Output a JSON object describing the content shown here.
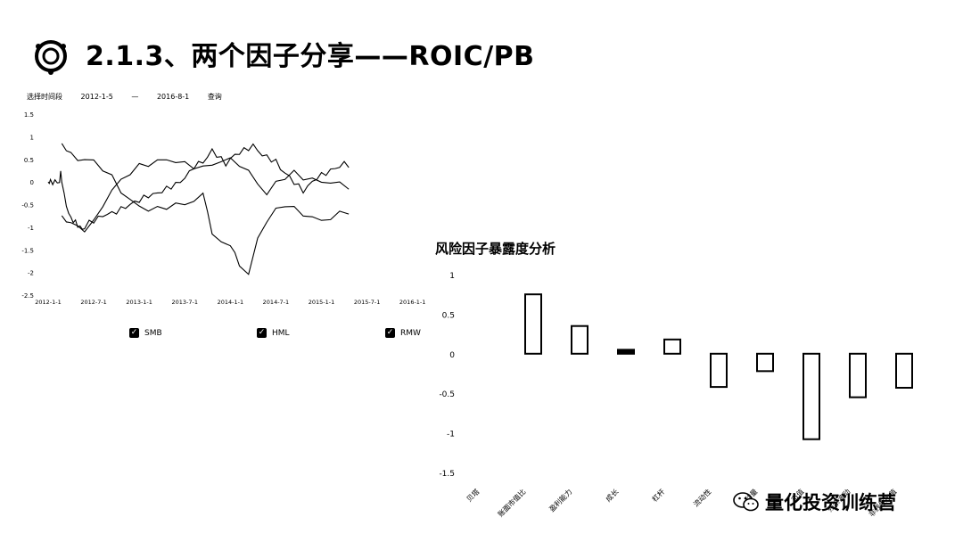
{
  "slide": {
    "title": "2.1.3、两个因子分享——ROIC/PB"
  },
  "date_range": {
    "label": "选择时间段",
    "start": "2012-1-5",
    "sep": "—",
    "end": "2016-8-1",
    "query": "查询"
  },
  "watermark": {
    "text": "量化投资训练营",
    "icon": "wechat-icon"
  },
  "chart_data": [
    {
      "type": "line",
      "x_ticks": [
        "2012-1-1",
        "2012-7-1",
        "2013-1-1",
        "2013-7-1",
        "2014-1-1",
        "2014-7-1",
        "2015-1-1",
        "2015-7-1",
        "2016-1-1"
      ],
      "y_ticks": [
        "1.5",
        "1",
        "0.5",
        "0",
        "-0.5",
        "-1",
        "-1.5",
        "-2",
        "-2.5"
      ],
      "ylim": [
        -2.5,
        1.5
      ],
      "series": [
        {
          "name": "SMB",
          "x": [
            0,
            0.05,
            0.1,
            0.2,
            0.3,
            0.4,
            0.5,
            0.55,
            0.6,
            0.7,
            0.8,
            0.9,
            1.0,
            1.1,
            1.2,
            1.3,
            1.4,
            1.5,
            1.6,
            1.8,
            2.0,
            2.2,
            2.4,
            2.6,
            2.8,
            3.0,
            3.2,
            3.4,
            3.6,
            3.8,
            4.0,
            4.2,
            4.4,
            4.6,
            4.8,
            5.0,
            5.2,
            5.4,
            5.6,
            5.8,
            6.0,
            6.2,
            6.4,
            6.6,
            6.8,
            7.0,
            7.2,
            7.4,
            7.6,
            7.8,
            8.0,
            8.2,
            8.4,
            8.6,
            8.8,
            9.0,
            9.2,
            9.4,
            9.6,
            9.8,
            10.0,
            10.2,
            10.4,
            10.6,
            10.8,
            11.0,
            11.2,
            11.4,
            11.6,
            11.8,
            12.0,
            12.2,
            12.4,
            12.6,
            12.8,
            13.0,
            13.2
          ],
          "values": [
            0,
            0,
            0,
            0,
            0,
            0,
            0,
            0.2,
            0.05,
            -0.3,
            -0.5,
            -0.7,
            -0.8,
            -0.85,
            -0.9,
            -0.95,
            -1.0,
            -1.05,
            -1.0,
            -0.9,
            -0.85,
            -0.8,
            -0.75,
            -0.7,
            -0.7,
            -0.65,
            -0.6,
            -0.55,
            -0.5,
            -0.45,
            -0.4,
            -0.35,
            -0.3,
            -0.28,
            -0.25,
            -0.2,
            -0.15,
            -0.1,
            -0.05,
            0.0,
            0.1,
            0.2,
            0.35,
            0.4,
            0.45,
            0.55,
            0.7,
            0.6,
            0.5,
            0.4,
            0.5,
            0.6,
            0.65,
            0.7,
            0.75,
            0.8,
            0.7,
            0.6,
            0.55,
            0.5,
            0.45,
            0.3,
            0.2,
            0.1,
            0.0,
            -0.1,
            -0.2,
            -0.1,
            0.0,
            0.1,
            0.15,
            0.2,
            0.25,
            0.3,
            0.35,
            0.4,
            0.38
          ]
        },
        {
          "name": "HML",
          "x": [
            0.6,
            0.8,
            1.0,
            1.3,
            1.6,
            2.0,
            2.4,
            2.8,
            3.2,
            3.6,
            4.0,
            4.4,
            4.8,
            5.2,
            5.6,
            6.0,
            6.4,
            6.8,
            7.0,
            7.2,
            7.6,
            8.0,
            8.2,
            8.4,
            8.8,
            9.2,
            9.6,
            10.0,
            10.4,
            10.8,
            11.2,
            11.6,
            12.0,
            12.4,
            12.8,
            13.2
          ],
          "values": [
            0.8,
            0.75,
            0.6,
            0.5,
            0.5,
            0.45,
            0.3,
            0.1,
            -0.2,
            -0.4,
            -0.55,
            -0.6,
            -0.6,
            -0.55,
            -0.5,
            -0.5,
            -0.4,
            -0.3,
            -0.6,
            -1.2,
            -1.3,
            -1.4,
            -1.6,
            -1.8,
            -2.1,
            -1.2,
            -0.9,
            -0.6,
            -0.5,
            -0.6,
            -0.7,
            -0.8,
            -0.85,
            -0.8,
            -0.7,
            -0.65
          ]
        },
        {
          "name": "RMW",
          "x": [
            0.6,
            0.8,
            1.0,
            1.3,
            1.6,
            2.0,
            2.4,
            2.8,
            3.2,
            3.6,
            4.0,
            4.4,
            4.8,
            5.2,
            5.6,
            6.0,
            6.4,
            6.8,
            7.2,
            7.6,
            8.0,
            8.4,
            8.8,
            9.2,
            9.6,
            10.0,
            10.4,
            10.8,
            11.2,
            11.6,
            12.0,
            12.4,
            12.8,
            13.2
          ],
          "values": [
            -0.8,
            -0.85,
            -0.9,
            -1.0,
            -1.05,
            -0.9,
            -0.5,
            -0.2,
            0.05,
            0.2,
            0.35,
            0.4,
            0.45,
            0.5,
            0.45,
            0.4,
            0.35,
            0.3,
            0.4,
            0.45,
            0.5,
            0.4,
            0.2,
            0.0,
            -0.3,
            0.0,
            0.1,
            0.2,
            0.1,
            0.05,
            0.0,
            0.0,
            -0.05,
            -0.1
          ]
        }
      ],
      "legend": [
        "SMB",
        "HML",
        "RMW"
      ],
      "legend_placement": "bottom"
    },
    {
      "type": "bar",
      "title": "风险因子暴露度分析",
      "categories": [
        "贝塔",
        "账面市值比",
        "盈利能力",
        "成长",
        "杠杆",
        "流动性",
        "动量",
        "市值",
        "残余波动",
        "非线性市值"
      ],
      "values": [
        0.75,
        0.35,
        0.05,
        0.18,
        -0.42,
        -0.22,
        -1.08,
        -0.55,
        -0.43,
        0.0
      ],
      "bar_values": [
        0.75,
        0.35,
        0.05,
        0.18,
        -0.42,
        -0.22,
        -1.08,
        -0.55,
        -0.43
      ],
      "y_ticks": [
        "1",
        "0.5",
        "0",
        "-0.5",
        "-1",
        "-1.5"
      ],
      "ylim": [
        -1.5,
        1.0
      ]
    }
  ]
}
